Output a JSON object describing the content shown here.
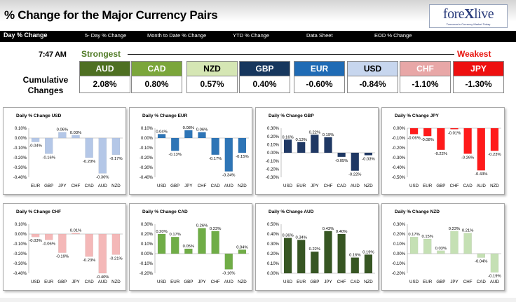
{
  "header": {
    "title": "% Change for the Major Currency Pairs",
    "logo_text_a": "fore",
    "logo_text_x": "X",
    "logo_text_b": "live",
    "logo_tagline": "Tomorrow's Currency Market Today"
  },
  "nav": {
    "items": [
      "Day % Change",
      "5- Day % Change",
      "Month to Date % Change",
      "YTD % Change",
      "Data Sheet",
      "EOD % Change"
    ]
  },
  "summary": {
    "time": "7:47 AM",
    "strongest_label": "Strongest",
    "weakest_label": "Weakest",
    "cumulative_label_1": "Cumulative",
    "cumulative_label_2": "Changes",
    "currencies": [
      {
        "code": "AUD",
        "value": "2.08%",
        "bg": "#4e7022",
        "fg": "#ffffff"
      },
      {
        "code": "CAD",
        "value": "0.80%",
        "bg": "#7ba63b",
        "fg": "#ffffff"
      },
      {
        "code": "NZD",
        "value": "0.57%",
        "bg": "#d5e6b4",
        "fg": "#000000"
      },
      {
        "code": "GBP",
        "value": "0.40%",
        "bg": "#17375e",
        "fg": "#ffffff"
      },
      {
        "code": "EUR",
        "value": "-0.60%",
        "bg": "#1f6bb5",
        "fg": "#ffffff"
      },
      {
        "code": "USD",
        "value": "-0.84%",
        "bg": "#c7d6ee",
        "fg": "#000000"
      },
      {
        "code": "CHF",
        "value": "-1.10%",
        "bg": "#e8a7a7",
        "fg": "#ffffff"
      },
      {
        "code": "JPY",
        "value": "-1.30%",
        "bg": "#ee1010",
        "fg": "#ffffff"
      }
    ]
  },
  "chart_data": [
    {
      "type": "bar",
      "title": "Daily % Change USD",
      "categories": [
        "EUR",
        "GBP",
        "JPY",
        "CHF",
        "CAD",
        "AUD",
        "NZD"
      ],
      "values": [
        -0.04,
        -0.16,
        0.06,
        0.03,
        -0.2,
        -0.36,
        -0.17
      ],
      "labels": [
        "-0.04%",
        "-0.16%",
        "0.06%",
        "0.03%",
        "-0.20%",
        "-0.36%",
        "-0.17%"
      ],
      "ylim": [
        -0.4,
        0.1
      ],
      "yticks": [
        "0.10%",
        "0.00%",
        "-0.10%",
        "-0.20%",
        "-0.30%",
        "-0.40%"
      ],
      "bar_color": "#b4c7e7",
      "xlabel": "",
      "ylabel": ""
    },
    {
      "type": "bar",
      "title": "Daily % Change EUR",
      "categories": [
        "USD",
        "GBP",
        "JPY",
        "CHF",
        "CAD",
        "AUD",
        "NZD"
      ],
      "values": [
        0.04,
        -0.13,
        0.08,
        0.06,
        -0.17,
        -0.34,
        -0.15
      ],
      "labels": [
        "0.04%",
        "-0.13%",
        "0.08%",
        "0.06%",
        "-0.17%",
        "-0.34%",
        "-0.15%"
      ],
      "ylim": [
        -0.4,
        0.1
      ],
      "yticks": [
        "0.10%",
        "0.00%",
        "-0.10%",
        "-0.20%",
        "-0.30%",
        "-0.40%"
      ],
      "bar_color": "#2e75b6",
      "xlabel": "",
      "ylabel": ""
    },
    {
      "type": "bar",
      "title": "Daily % Change GBP",
      "categories": [
        "USD",
        "EUR",
        "JPY",
        "CHF",
        "CAD",
        "AUD",
        "NZD"
      ],
      "values": [
        0.16,
        0.13,
        0.22,
        0.19,
        -0.05,
        -0.22,
        -0.03
      ],
      "labels": [
        "0.16%",
        "0.13%",
        "0.22%",
        "0.19%",
        "-0.05%",
        "-0.22%",
        "-0.03%"
      ],
      "ylim": [
        -0.3,
        0.3
      ],
      "yticks": [
        "0.30%",
        "0.20%",
        "0.10%",
        "0.00%",
        "-0.10%",
        "-0.20%",
        "-0.30%"
      ],
      "bar_color": "#1f3864",
      "xlabel": "",
      "ylabel": ""
    },
    {
      "type": "bar",
      "title": "Daily % Change JPY",
      "categories": [
        "USD",
        "EUR",
        "GBP",
        "CHF",
        "CAD",
        "AUD",
        "NZD"
      ],
      "values": [
        -0.06,
        -0.08,
        -0.22,
        -0.01,
        -0.26,
        -0.43,
        -0.23
      ],
      "labels": [
        "-0.06%",
        "-0.08%",
        "-0.22%",
        "-0.01%",
        "-0.26%",
        "-0.43%",
        "-0.23%"
      ],
      "ylim": [
        -0.5,
        0.0
      ],
      "yticks": [
        "0.00%",
        "-0.10%",
        "-0.20%",
        "-0.30%",
        "-0.40%",
        "-0.50%"
      ],
      "bar_color": "#ff1a1a",
      "xlabel": "",
      "ylabel": ""
    },
    {
      "type": "bar",
      "title": "Daily % Change CHF",
      "categories": [
        "USD",
        "EUR",
        "GBP",
        "JPY",
        "CAD",
        "AUD",
        "NZD"
      ],
      "values": [
        -0.03,
        -0.06,
        -0.19,
        0.01,
        -0.23,
        -0.4,
        -0.21
      ],
      "labels": [
        "-0.03%",
        "-0.06%",
        "-0.19%",
        "0.01%",
        "-0.23%",
        "-0.40%",
        "-0.21%"
      ],
      "ylim": [
        -0.4,
        0.1
      ],
      "yticks": [
        "0.10%",
        "0.00%",
        "-0.10%",
        "-0.20%",
        "-0.30%",
        "-0.40%"
      ],
      "bar_color": "#f4b8b8",
      "xlabel": "",
      "ylabel": ""
    },
    {
      "type": "bar",
      "title": "Daily % Change CAD",
      "categories": [
        "USD",
        "EUR",
        "GBP",
        "JPY",
        "CHF",
        "AUD",
        "NZD"
      ],
      "values": [
        0.2,
        0.17,
        0.05,
        0.26,
        0.23,
        -0.16,
        0.04
      ],
      "labels": [
        "0.20%",
        "0.17%",
        "0.05%",
        "0.26%",
        "0.23%",
        "-0.16%",
        "0.04%"
      ],
      "ylim": [
        -0.2,
        0.3
      ],
      "yticks": [
        "0.30%",
        "0.20%",
        "0.10%",
        "0.00%",
        "-0.10%",
        "-0.20%"
      ],
      "bar_color": "#70ad47",
      "xlabel": "",
      "ylabel": ""
    },
    {
      "type": "bar",
      "title": "Daily % Change AUD",
      "categories": [
        "USD",
        "EUR",
        "GBP",
        "JPY",
        "CHF",
        "CAD",
        "NZD"
      ],
      "values": [
        0.36,
        0.34,
        0.22,
        0.43,
        0.4,
        0.16,
        0.19
      ],
      "labels": [
        "0.36%",
        "0.34%",
        "0.22%",
        "0.43%",
        "0.40%",
        "0.16%",
        "0.19%"
      ],
      "ylim": [
        0.0,
        0.5
      ],
      "yticks": [
        "0.50%",
        "0.40%",
        "0.30%",
        "0.20%",
        "0.10%",
        "0.00%"
      ],
      "bar_color": "#375623",
      "xlabel": "",
      "ylabel": ""
    },
    {
      "type": "bar",
      "title": "Daily % Change NZD",
      "categories": [
        "USD",
        "EUR",
        "GBP",
        "JPY",
        "CHF",
        "CAD",
        "AUD"
      ],
      "values": [
        0.17,
        0.15,
        0.03,
        0.23,
        0.21,
        -0.04,
        -0.19
      ],
      "labels": [
        "0.17%",
        "0.15%",
        "0.03%",
        "0.23%",
        "0.21%",
        "-0.04%",
        "-0.19%"
      ],
      "ylim": [
        -0.2,
        0.3
      ],
      "yticks": [
        "0.30%",
        "0.20%",
        "0.10%",
        "0.00%",
        "-0.10%",
        "-0.20%"
      ],
      "bar_color": "#c5e0b4",
      "xlabel": "",
      "ylabel": ""
    }
  ]
}
